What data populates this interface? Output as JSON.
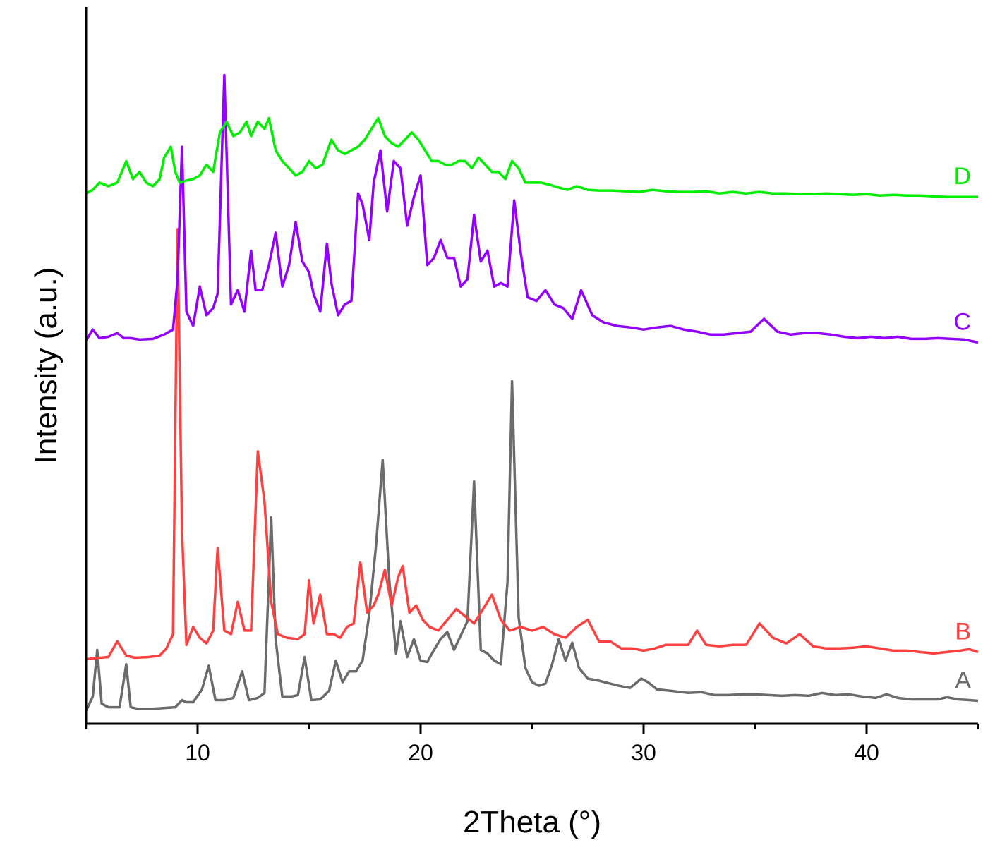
{
  "chart_data": {
    "type": "line",
    "title": "",
    "xlabel": "2Theta (°)",
    "ylabel": "Intensity (a.u.)",
    "xlim": [
      5,
      45
    ],
    "ylim": [
      0,
      100
    ],
    "y_ticks_shown": false,
    "x_ticks": [
      10,
      20,
      30,
      40
    ],
    "x_tick_labels": [
      "10",
      "20",
      "30",
      "40"
    ],
    "legend": "inline labels at right end of traces",
    "grid": false,
    "series": [
      {
        "name": "A",
        "color": "#6b6b6b",
        "baseline": 1.8,
        "x": [
          5,
          5.3,
          5.5,
          5.7,
          6.0,
          6.5,
          6.8,
          7.0,
          7.3,
          8.0,
          9.0,
          9.3,
          9.5,
          9.8,
          10.2,
          10.5,
          10.8,
          11.2,
          11.6,
          12.0,
          12.3,
          12.7,
          13.0,
          13.3,
          13.5,
          13.8,
          14.2,
          14.5,
          14.8,
          15.1,
          15.5,
          15.9,
          16.2,
          16.5,
          16.8,
          17.1,
          17.4,
          17.7,
          18.0,
          18.3,
          18.6,
          18.9,
          19.1,
          19.4,
          19.7,
          20.0,
          20.3,
          20.6,
          20.9,
          21.2,
          21.5,
          21.8,
          22.1,
          22.4,
          22.7,
          23.0,
          23.3,
          23.6,
          23.9,
          24.1,
          24.4,
          24.7,
          25.0,
          25.3,
          25.6,
          25.9,
          26.2,
          26.5,
          26.8,
          27.1,
          27.5,
          28.0,
          28.5,
          28.9,
          29.4,
          29.9,
          30.2,
          30.6,
          31.2,
          32.0,
          32.6,
          33.2,
          33.8,
          34.4,
          35.0,
          35.6,
          36.2,
          36.8,
          37.4,
          38.0,
          38.6,
          39.2,
          39.8,
          40.4,
          40.9,
          41.4,
          42.0,
          42.6,
          43.2,
          43.6,
          44.1,
          44.6,
          45.0
        ],
        "y": [
          0,
          2,
          8.5,
          1,
          0.5,
          0.5,
          6.5,
          0.5,
          0.3,
          0.3,
          0.5,
          1.5,
          1.2,
          1.2,
          3.0,
          6.3,
          1.5,
          1.5,
          1.8,
          5.5,
          1.5,
          1.8,
          2.5,
          27,
          10,
          2.0,
          2.0,
          2.2,
          7.5,
          1.5,
          1.6,
          2.8,
          7.0,
          4.0,
          5.5,
          5.5,
          7.0,
          13.5,
          23,
          35,
          18,
          8,
          12.5,
          7.5,
          10,
          7,
          6.8,
          8.5,
          10,
          11,
          8.5,
          10.5,
          12.5,
          32,
          8.5,
          8.0,
          7.0,
          6.5,
          18,
          46,
          13,
          6,
          4.0,
          3.5,
          3.8,
          6.5,
          10,
          7,
          9.5,
          6.0,
          4.5,
          4.2,
          3.8,
          3.5,
          3.2,
          4.5,
          4.0,
          3.0,
          2.8,
          2.5,
          2.6,
          2.2,
          2.2,
          2.3,
          2.3,
          2.2,
          2.1,
          2.2,
          2.1,
          2.5,
          2.2,
          2.3,
          2.0,
          1.8,
          2.3,
          1.8,
          1.6,
          1.6,
          1.6,
          1.9,
          1.6,
          1.5,
          1.4
        ]
      },
      {
        "name": "B",
        "color": "#ff4040",
        "baseline": 9,
        "x": [
          5,
          5.6,
          6.0,
          6.4,
          6.8,
          7.2,
          7.8,
          8.3,
          8.6,
          8.9,
          9.1,
          9.3,
          9.5,
          9.8,
          10.1,
          10.4,
          10.7,
          10.9,
          11.2,
          11.5,
          11.8,
          12.1,
          12.4,
          12.7,
          13.0,
          13.3,
          13.6,
          14.0,
          14.5,
          14.8,
          15.0,
          15.2,
          15.5,
          15.8,
          16.1,
          16.4,
          16.7,
          17.0,
          17.3,
          17.6,
          17.9,
          18.1,
          18.4,
          18.7,
          19.0,
          19.2,
          19.5,
          19.8,
          20.1,
          20.4,
          20.8,
          21.2,
          21.6,
          22.0,
          22.4,
          22.8,
          23.2,
          23.6,
          24.0,
          24.5,
          25.0,
          25.5,
          26.0,
          26.5,
          27.0,
          27.5,
          28.0,
          28.5,
          29.0,
          29.5,
          30.0,
          30.5,
          31.0,
          31.5,
          32.0,
          32.4,
          32.8,
          33.4,
          34.0,
          34.6,
          35.2,
          35.8,
          36.4,
          37.0,
          37.6,
          38.2,
          38.8,
          39.4,
          40.0,
          40.6,
          41.2,
          41.8,
          42.4,
          43.0,
          43.6,
          44.2,
          44.6,
          45.0
        ],
        "y": [
          0,
          0.2,
          0.3,
          2.5,
          0.5,
          0.2,
          0.3,
          0.5,
          1.5,
          3.5,
          60,
          18,
          2.0,
          4.5,
          3.0,
          2.2,
          4.0,
          15.5,
          4.0,
          3.5,
          8.0,
          4.0,
          4.0,
          29,
          22,
          8.0,
          3.5,
          3.0,
          2.8,
          3.5,
          11,
          5.0,
          9.0,
          3.5,
          3.5,
          3.0,
          4.5,
          5.0,
          13.5,
          6.5,
          7.5,
          9.0,
          12.5,
          7.5,
          11.5,
          13,
          6.5,
          7.5,
          5.5,
          4.5,
          4.0,
          5.5,
          7.0,
          6.0,
          5.0,
          7.0,
          9.0,
          5.5,
          4.0,
          4.5,
          4.0,
          4.5,
          3.5,
          3.0,
          4.5,
          5.5,
          2.5,
          2.5,
          1.5,
          1.5,
          1.2,
          1.5,
          2.0,
          2.0,
          2.0,
          4.0,
          2.0,
          1.8,
          2.0,
          2.0,
          5.0,
          3.0,
          2.2,
          3.5,
          1.8,
          1.5,
          1.5,
          1.6,
          1.8,
          1.5,
          1.2,
          1.2,
          1.0,
          0.8,
          1.0,
          1.2,
          1.4,
          1.0
        ]
      },
      {
        "name": "C",
        "color": "#9400ff",
        "baseline": 53.5,
        "x": [
          5,
          5.3,
          5.6,
          6.0,
          6.4,
          6.7,
          7.0,
          7.4,
          8.0,
          8.5,
          8.9,
          9.1,
          9.3,
          9.5,
          9.8,
          10.1,
          10.4,
          10.7,
          10.9,
          11.2,
          11.5,
          11.8,
          12.1,
          12.4,
          12.6,
          12.9,
          13.2,
          13.5,
          13.8,
          14.1,
          14.4,
          14.7,
          15.0,
          15.2,
          15.5,
          15.8,
          16.0,
          16.3,
          16.6,
          16.9,
          17.2,
          17.4,
          17.7,
          17.9,
          18.2,
          18.5,
          18.8,
          19.1,
          19.4,
          19.7,
          20.0,
          20.3,
          20.6,
          20.9,
          21.2,
          21.5,
          21.8,
          22.1,
          22.4,
          22.7,
          23.0,
          23.3,
          23.6,
          23.9,
          24.2,
          24.5,
          24.8,
          25.2,
          25.6,
          26.0,
          26.4,
          26.8,
          27.2,
          27.7,
          28.2,
          28.8,
          29.4,
          30.0,
          30.6,
          31.2,
          31.8,
          32.4,
          33.0,
          33.6,
          34.2,
          34.8,
          35.4,
          36.0,
          36.6,
          37.2,
          37.8,
          38.4,
          39.0,
          39.6,
          40.2,
          40.8,
          41.4,
          42.0,
          42.6,
          43.2,
          43.8,
          44.4,
          45.0
        ],
        "y": [
          0,
          1.5,
          0.3,
          0.5,
          1.0,
          0.3,
          0.3,
          0.1,
          0.2,
          0.8,
          1.5,
          8.5,
          27,
          4.0,
          2.0,
          7.5,
          3.5,
          4.5,
          6.5,
          37,
          5.0,
          7.0,
          4.0,
          12.5,
          7.0,
          7.0,
          10.5,
          15,
          7.5,
          10.5,
          16.5,
          11,
          9.5,
          6.5,
          4.0,
          13.5,
          8.0,
          3.5,
          5.0,
          5.5,
          20.5,
          19,
          14,
          22,
          26.5,
          18,
          25,
          24,
          16,
          20,
          23,
          10.5,
          11.5,
          14,
          11.5,
          11.5,
          7.5,
          8.5,
          17.5,
          11,
          12.5,
          7.5,
          8.0,
          7.5,
          19.5,
          12,
          6.0,
          5.5,
          7.0,
          5.0,
          4.5,
          3.0,
          7.0,
          3.5,
          2.5,
          2.0,
          1.8,
          1.5,
          1.8,
          2.0,
          1.5,
          1.2,
          0.8,
          0.8,
          1.0,
          1.2,
          3.0,
          1.2,
          0.8,
          1.0,
          1.0,
          0.8,
          0.5,
          0.3,
          0.5,
          0.3,
          0.5,
          0.2,
          0.2,
          0.3,
          0.2,
          0.1,
          -0.3
        ]
      },
      {
        "name": "D",
        "color": "#00ee00",
        "baseline": 74,
        "x": [
          5,
          5.3,
          5.6,
          6.0,
          6.4,
          6.8,
          7.1,
          7.4,
          7.7,
          8.0,
          8.3,
          8.5,
          8.8,
          9.0,
          9.2,
          9.5,
          9.8,
          10.1,
          10.4,
          10.7,
          11.0,
          11.3,
          11.6,
          11.9,
          12.2,
          12.4,
          12.7,
          13.0,
          13.2,
          13.5,
          13.8,
          14.1,
          14.4,
          14.7,
          15.0,
          15.3,
          15.6,
          16.0,
          16.3,
          16.6,
          16.9,
          17.2,
          17.5,
          17.8,
          18.1,
          18.4,
          18.7,
          19.0,
          19.3,
          19.6,
          19.9,
          20.2,
          20.5,
          20.8,
          21.1,
          21.4,
          21.7,
          22.0,
          22.3,
          22.6,
          22.9,
          23.2,
          23.5,
          23.8,
          24.1,
          24.4,
          24.7,
          25.0,
          25.4,
          25.8,
          26.2,
          26.6,
          27.0,
          27.5,
          28.0,
          28.6,
          29.2,
          29.8,
          30.4,
          31.0,
          31.6,
          32.2,
          32.8,
          33.4,
          34.0,
          34.6,
          35.2,
          35.8,
          36.4,
          37.0,
          37.6,
          38.2,
          38.8,
          39.4,
          40.0,
          40.6,
          41.2,
          41.8,
          42.4,
          43.0,
          43.6,
          44.2,
          45.0
        ],
        "y": [
          0,
          0.5,
          1.5,
          1.0,
          1.5,
          4.5,
          2.0,
          3.0,
          1.5,
          1.0,
          2.0,
          5.0,
          6.5,
          3.0,
          1.5,
          1.8,
          2.0,
          2.5,
          4.0,
          3.0,
          8.5,
          10,
          8.0,
          8.5,
          10,
          8.0,
          10,
          9.0,
          10.5,
          6.0,
          4.5,
          3.5,
          2.5,
          3.0,
          4.5,
          3.5,
          4.0,
          7.5,
          6.0,
          5.5,
          6.0,
          6.5,
          7.5,
          9.0,
          10.5,
          8.0,
          7.0,
          6.5,
          7.5,
          8.5,
          7.5,
          6.0,
          4.5,
          4.5,
          4.0,
          4.0,
          4.5,
          4.5,
          3.5,
          5.0,
          4.0,
          3.0,
          3.0,
          2.0,
          4.5,
          3.5,
          1.5,
          1.5,
          1.5,
          1.2,
          0.8,
          0.5,
          1.0,
          0.5,
          0.4,
          0.4,
          0.3,
          0.2,
          0.5,
          0.3,
          0.2,
          0.2,
          0.3,
          0.0,
          0.2,
          0.0,
          0.2,
          0.0,
          0.0,
          -0.1,
          -0.1,
          0.0,
          -0.1,
          -0.2,
          -0.1,
          -0.3,
          -0.2,
          -0.3,
          -0.3,
          -0.4,
          -0.5,
          -0.5,
          -0.5
        ]
      }
    ]
  }
}
